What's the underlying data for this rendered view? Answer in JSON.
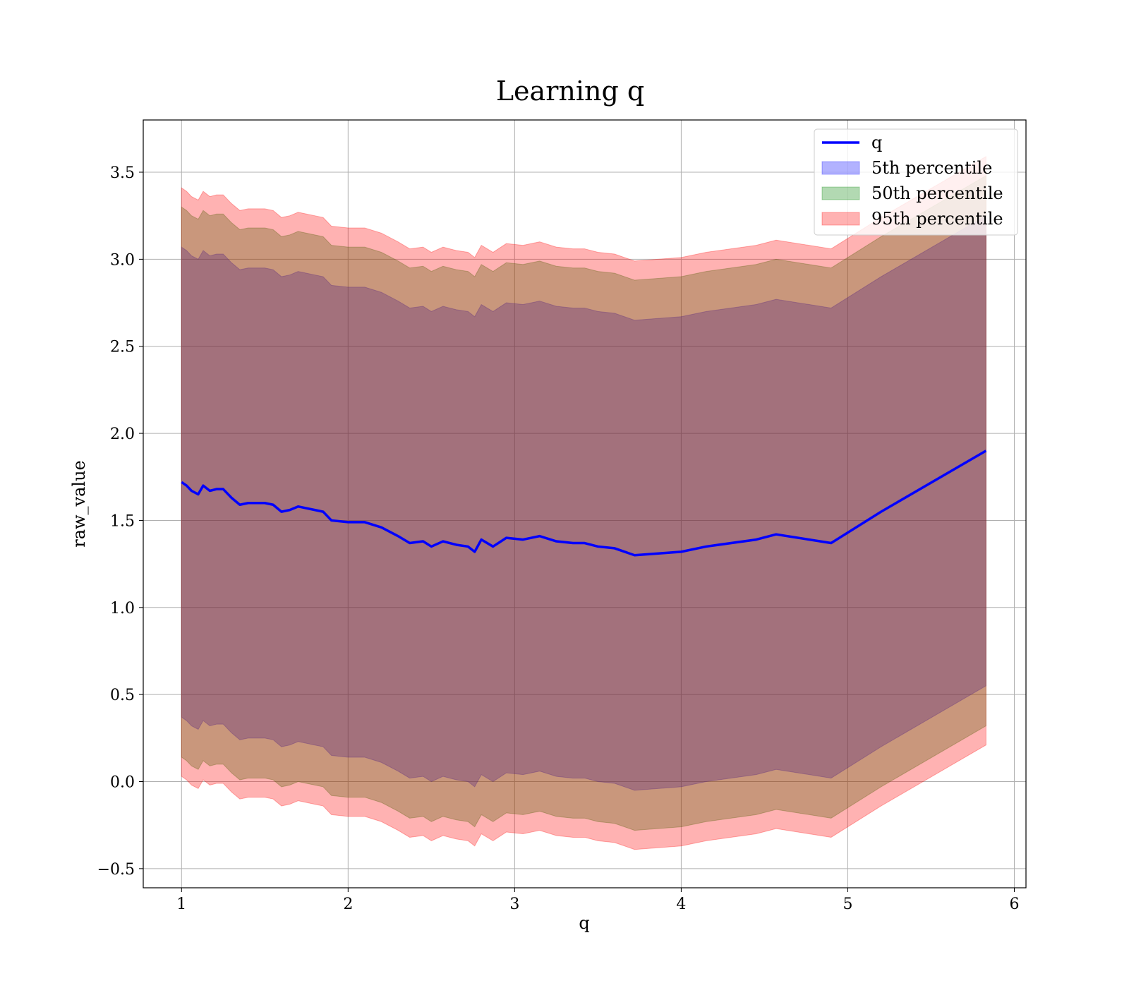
{
  "chart_data": {
    "type": "line",
    "title": "Learning q",
    "xlabel": "q",
    "ylabel": "raw_value",
    "xlim": [
      0.77,
      6.07
    ],
    "ylim": [
      -0.61,
      3.8
    ],
    "xticks": [
      1,
      2,
      3,
      4,
      5,
      6
    ],
    "yticks": [
      -0.5,
      0.0,
      0.5,
      1.0,
      1.5,
      2.0,
      2.5,
      3.0,
      3.5
    ],
    "ytick_labels": [
      "−0.5",
      "0.0",
      "0.5",
      "1.0",
      "1.5",
      "2.0",
      "2.5",
      "3.0",
      "3.5"
    ],
    "grid": true,
    "legend_position": "top-right",
    "legend": [
      "q",
      "5th percentile",
      "50th percentile",
      "95th percentile"
    ],
    "colors": {
      "line": "#0000ff",
      "p5": "#0000ff",
      "p50": "#008000",
      "p95": "#ff0000"
    },
    "x": [
      1.0,
      1.03,
      1.06,
      1.1,
      1.13,
      1.17,
      1.21,
      1.25,
      1.3,
      1.35,
      1.4,
      1.45,
      1.5,
      1.55,
      1.6,
      1.65,
      1.7,
      1.75,
      1.8,
      1.85,
      1.9,
      2.0,
      2.1,
      2.2,
      2.3,
      2.37,
      2.45,
      2.5,
      2.57,
      2.65,
      2.72,
      2.76,
      2.8,
      2.87,
      2.95,
      3.05,
      3.15,
      3.25,
      3.35,
      3.42,
      3.5,
      3.6,
      3.72,
      4.0,
      4.15,
      4.45,
      4.57,
      4.9,
      5.2,
      5.83
    ],
    "series": [
      {
        "name": "q",
        "values": [
          1.72,
          1.7,
          1.67,
          1.65,
          1.7,
          1.67,
          1.68,
          1.68,
          1.63,
          1.59,
          1.6,
          1.6,
          1.6,
          1.59,
          1.55,
          1.56,
          1.58,
          1.57,
          1.56,
          1.55,
          1.5,
          1.49,
          1.49,
          1.46,
          1.41,
          1.37,
          1.38,
          1.35,
          1.38,
          1.36,
          1.35,
          1.32,
          1.39,
          1.35,
          1.4,
          1.39,
          1.41,
          1.38,
          1.37,
          1.37,
          1.35,
          1.34,
          1.3,
          1.32,
          1.35,
          1.39,
          1.42,
          1.37,
          1.55,
          1.9
        ]
      },
      {
        "name": "5th percentile",
        "lower": [
          0.37,
          0.35,
          0.32,
          0.3,
          0.35,
          0.32,
          0.33,
          0.33,
          0.28,
          0.24,
          0.25,
          0.25,
          0.25,
          0.24,
          0.2,
          0.21,
          0.23,
          0.22,
          0.21,
          0.2,
          0.15,
          0.14,
          0.14,
          0.11,
          0.06,
          0.02,
          0.03,
          0.0,
          0.03,
          0.01,
          0.0,
          -0.03,
          0.04,
          0.0,
          0.05,
          0.04,
          0.06,
          0.03,
          0.02,
          0.02,
          0.0,
          -0.01,
          -0.05,
          -0.03,
          0.0,
          0.04,
          0.07,
          0.02,
          0.2,
          0.55
        ],
        "upper": [
          3.07,
          3.05,
          3.02,
          3.0,
          3.05,
          3.02,
          3.03,
          3.03,
          2.98,
          2.94,
          2.95,
          2.95,
          2.95,
          2.94,
          2.9,
          2.91,
          2.93,
          2.92,
          2.91,
          2.9,
          2.85,
          2.84,
          2.84,
          2.81,
          2.76,
          2.72,
          2.73,
          2.7,
          2.73,
          2.71,
          2.7,
          2.67,
          2.74,
          2.7,
          2.75,
          2.74,
          2.76,
          2.73,
          2.72,
          2.72,
          2.7,
          2.69,
          2.65,
          2.67,
          2.7,
          2.74,
          2.77,
          2.72,
          2.9,
          3.25
        ]
      },
      {
        "name": "50th percentile",
        "lower": [
          0.14,
          0.12,
          0.09,
          0.07,
          0.12,
          0.09,
          0.1,
          0.1,
          0.05,
          0.01,
          0.02,
          0.02,
          0.02,
          0.01,
          -0.03,
          -0.02,
          0.0,
          -0.01,
          -0.02,
          -0.03,
          -0.08,
          -0.09,
          -0.09,
          -0.12,
          -0.17,
          -0.21,
          -0.2,
          -0.23,
          -0.2,
          -0.22,
          -0.23,
          -0.26,
          -0.19,
          -0.23,
          -0.18,
          -0.19,
          -0.17,
          -0.2,
          -0.21,
          -0.21,
          -0.23,
          -0.24,
          -0.28,
          -0.26,
          -0.23,
          -0.19,
          -0.16,
          -0.21,
          -0.03,
          0.32
        ],
        "upper": [
          3.3,
          3.28,
          3.25,
          3.23,
          3.28,
          3.25,
          3.26,
          3.26,
          3.21,
          3.17,
          3.18,
          3.18,
          3.18,
          3.17,
          3.13,
          3.14,
          3.16,
          3.15,
          3.14,
          3.13,
          3.08,
          3.07,
          3.07,
          3.04,
          2.99,
          2.95,
          2.96,
          2.93,
          2.96,
          2.94,
          2.93,
          2.9,
          2.97,
          2.93,
          2.98,
          2.97,
          2.99,
          2.96,
          2.95,
          2.95,
          2.93,
          2.92,
          2.88,
          2.9,
          2.93,
          2.97,
          3.0,
          2.95,
          3.13,
          3.48
        ]
      },
      {
        "name": "95th percentile",
        "lower": [
          0.03,
          0.01,
          -0.02,
          -0.04,
          0.01,
          -0.02,
          -0.01,
          -0.01,
          -0.06,
          -0.1,
          -0.09,
          -0.09,
          -0.09,
          -0.1,
          -0.14,
          -0.13,
          -0.11,
          -0.12,
          -0.13,
          -0.14,
          -0.19,
          -0.2,
          -0.2,
          -0.23,
          -0.28,
          -0.32,
          -0.31,
          -0.34,
          -0.31,
          -0.33,
          -0.34,
          -0.37,
          -0.3,
          -0.34,
          -0.29,
          -0.3,
          -0.28,
          -0.31,
          -0.32,
          -0.32,
          -0.34,
          -0.35,
          -0.39,
          -0.37,
          -0.34,
          -0.3,
          -0.27,
          -0.32,
          -0.14,
          0.21
        ],
        "upper": [
          3.41,
          3.39,
          3.36,
          3.34,
          3.39,
          3.36,
          3.37,
          3.37,
          3.32,
          3.28,
          3.29,
          3.29,
          3.29,
          3.28,
          3.24,
          3.25,
          3.27,
          3.26,
          3.25,
          3.24,
          3.19,
          3.18,
          3.18,
          3.15,
          3.1,
          3.06,
          3.07,
          3.04,
          3.07,
          3.05,
          3.04,
          3.01,
          3.08,
          3.04,
          3.09,
          3.08,
          3.1,
          3.07,
          3.06,
          3.06,
          3.04,
          3.03,
          2.99,
          3.01,
          3.04,
          3.08,
          3.11,
          3.06,
          3.24,
          3.59
        ]
      }
    ]
  }
}
